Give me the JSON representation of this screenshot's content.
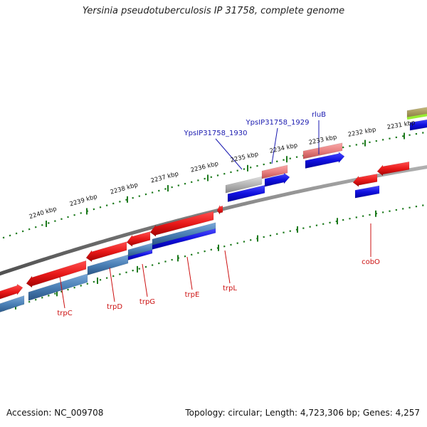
{
  "title": "Yersinia pseudotuberculosis IP 31758, complete genome",
  "accession": "Accession: NC_009708",
  "topology": "Topology: circular; Length: 4,723,306 bp; Genes: 4,257",
  "kbp_labels": [
    "2240 kbp",
    "2239 kbp",
    "2238 kbp",
    "2237 kbp",
    "2236 kbp",
    "2235 kbp",
    "2234 kbp",
    "2233 kbp",
    "2232 kbp",
    "2231 kbp"
  ],
  "upper_gene_labels": [
    "YpsIP31758_1930",
    "YpsIP31758_1929",
    "rluB"
  ],
  "lower_gene_labels": [
    "cobO",
    "trpC",
    "trpD",
    "trpG",
    "trpE",
    "trpL"
  ],
  "colors": {
    "backbone": "#7a7a7a",
    "tick": "#1d7a1d",
    "gene_red": "#e81818",
    "gene_pink": "#e88080",
    "gene_grey": "#b4b4b4",
    "cds_blue": "#1010e0",
    "steel_blue": "#4a7fb5",
    "olive": "#a89a5a",
    "lime": "#99ee33",
    "label_blue": "#1a1ab0",
    "label_red": "#cc1111"
  }
}
